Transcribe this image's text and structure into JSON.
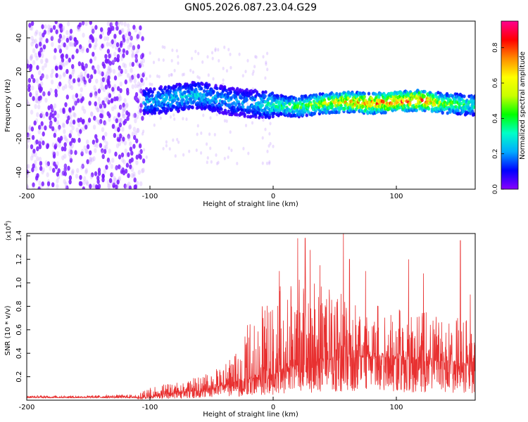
{
  "title": "GN05.2026.087.23.04.G29",
  "chart_data": [
    {
      "type": "heatmap",
      "title": "GN05.2026.087.23.04.G29",
      "xlabel": "Height of straight line (km)",
      "ylabel": "Frequency (Hz)",
      "xlim": [
        -200,
        164
      ],
      "ylim": [
        -50,
        50
      ],
      "xticks": [
        -200,
        -100,
        0,
        100
      ],
      "yticks": [
        -40,
        -20,
        0,
        20,
        40
      ],
      "colorbar": {
        "label": "Normalized spectral amplitude",
        "range": [
          0,
          0.95
        ],
        "ticks": [
          0.0,
          0.2,
          0.4,
          0.6,
          0.8
        ],
        "colormap": [
          "#8a00ff",
          "#0000ff",
          "#00aaff",
          "#00ffc8",
          "#00ff00",
          "#c8ff00",
          "#ffff00",
          "#ff8c00",
          "#ff0000",
          "#ff0090"
        ]
      },
      "regions": [
        {
          "x_range": [
            -200,
            -105
          ],
          "description": "broadband noise",
          "freq_range": [
            -50,
            50
          ],
          "amplitude": 0.05
        },
        {
          "x_range": [
            -105,
            164
          ],
          "description": "signal band near 0 Hz",
          "freq_center": 0,
          "freq_halfwidth": 5,
          "peak_amplitude": 0.9
        }
      ],
      "ridge": {
        "x": [
          -100,
          -80,
          -60,
          -40,
          -20,
          0,
          20,
          40,
          60,
          80,
          100,
          120,
          140,
          164
        ],
        "freq": [
          2,
          4,
          6,
          3,
          1,
          0,
          -1,
          1,
          2,
          1,
          2,
          3,
          1,
          0
        ],
        "amplitude": [
          0.25,
          0.3,
          0.3,
          0.25,
          0.25,
          0.4,
          0.45,
          0.6,
          0.75,
          0.85,
          0.85,
          0.9,
          0.55,
          0.4
        ]
      }
    },
    {
      "type": "line",
      "xlabel": "Height of straight line (km)",
      "ylabel": "SNR (10 * v/v)",
      "yscale_label": "(x10^4)",
      "xlim": [
        -200,
        164
      ],
      "ylim": [
        0,
        1.42
      ],
      "xticks": [
        -200,
        -100,
        0,
        100
      ],
      "yticks": [
        0.2,
        0.4,
        0.6,
        0.8,
        1.0,
        1.2,
        1.4
      ],
      "color": "#e83030",
      "series": [
        {
          "x": [
            -200,
            -150,
            -110,
            -100,
            -80,
            -60,
            -50,
            -40,
            -30,
            -20,
            -10,
            0,
            10,
            20,
            30,
            40,
            50,
            60,
            70,
            80,
            90,
            100,
            110,
            120,
            130,
            140,
            150,
            164
          ],
          "y_baseline": [
            0.02,
            0.02,
            0.02,
            0.03,
            0.06,
            0.08,
            0.1,
            0.12,
            0.15,
            0.18,
            0.2,
            0.22,
            0.26,
            0.3,
            0.32,
            0.34,
            0.35,
            0.36,
            0.36,
            0.36,
            0.36,
            0.35,
            0.34,
            0.34,
            0.33,
            0.32,
            0.3,
            0.3
          ],
          "y_envelope": [
            0.04,
            0.04,
            0.05,
            0.12,
            0.15,
            0.2,
            0.25,
            0.3,
            0.4,
            0.7,
            0.8,
            0.95,
            1.0,
            1.05,
            1.0,
            1.0,
            0.95,
            0.9,
            0.9,
            0.85,
            0.85,
            0.8,
            0.8,
            0.75,
            0.75,
            0.7,
            0.7,
            0.7
          ]
        }
      ],
      "peaks": [
        {
          "x": 5,
          "y": 1.1
        },
        {
          "x": 20,
          "y": 1.38
        },
        {
          "x": 26,
          "y": 1.38
        },
        {
          "x": 30,
          "y": 1.28
        },
        {
          "x": 38,
          "y": 1.15
        },
        {
          "x": 57,
          "y": 1.42
        },
        {
          "x": 62,
          "y": 1.2
        },
        {
          "x": 75,
          "y": 1.1
        },
        {
          "x": 110,
          "y": 1.2
        },
        {
          "x": 122,
          "y": 1.08
        },
        {
          "x": 152,
          "y": 1.36
        },
        {
          "x": 160,
          "y": 0.9
        }
      ]
    }
  ]
}
